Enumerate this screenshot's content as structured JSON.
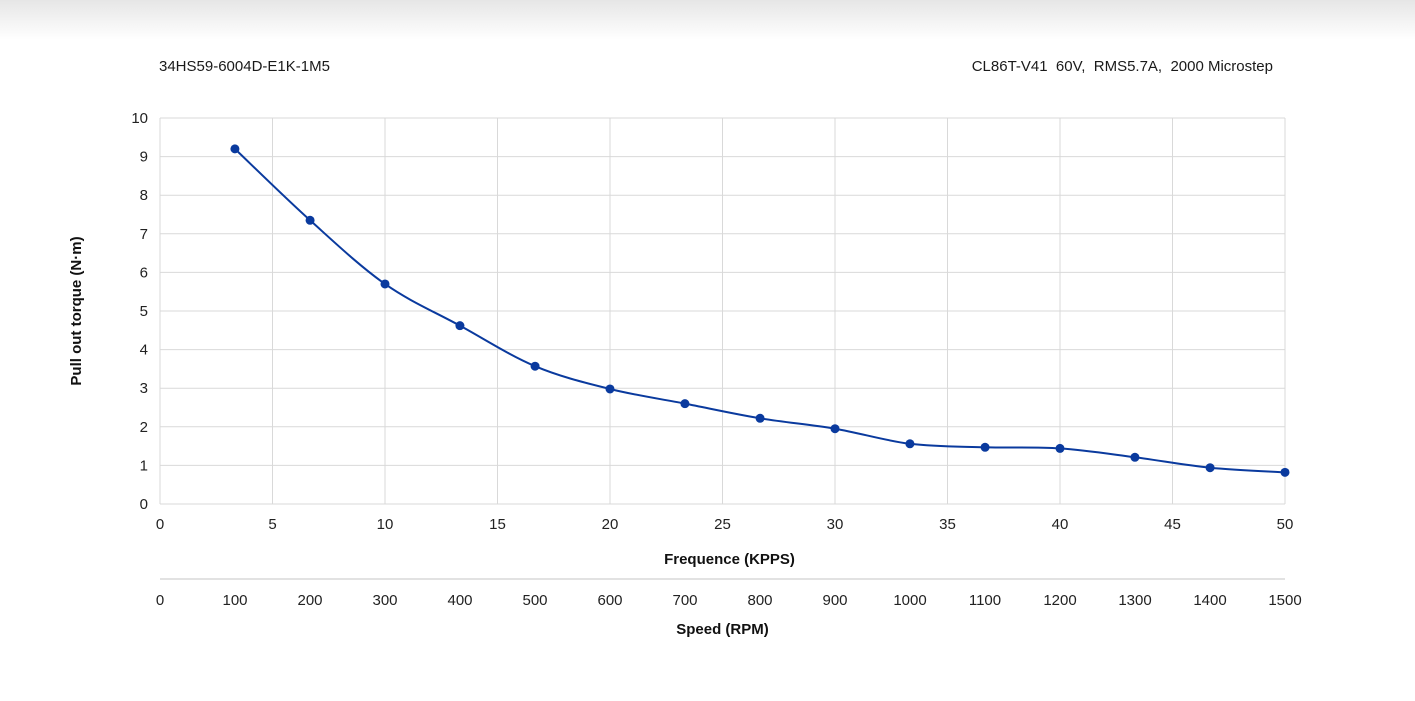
{
  "header": {
    "left": "34HS59-6004D-E1K-1M5",
    "right": "CL86T-V41  60V,  RMS5.7A,  2000 Microstep"
  },
  "chart_data": {
    "type": "line",
    "xlabel": "Frequence (KPPS)",
    "ylabel": "Pull out torque (N·m)",
    "x2label": "Speed (RPM)",
    "xlim": [
      0,
      50
    ],
    "ylim": [
      0,
      10
    ],
    "x_ticks": [
      "0",
      "5",
      "10",
      "15",
      "20",
      "25",
      "30",
      "35",
      "40",
      "45",
      "50"
    ],
    "y_ticks": [
      "0",
      "1",
      "2",
      "3",
      "4",
      "5",
      "6",
      "7",
      "8",
      "9",
      "10"
    ],
    "x2_ticks": [
      "0",
      "100",
      "200",
      "300",
      "400",
      "500",
      "600",
      "700",
      "800",
      "900",
      "1000",
      "1100",
      "1200",
      "1300",
      "1400",
      "1500"
    ],
    "grid": true,
    "line_color": "#0a3a9e",
    "marker_color": "#0a3a9e",
    "series": [
      {
        "x": [
          3.33,
          6.67,
          10,
          13.33,
          16.67,
          20,
          23.33,
          26.67,
          30,
          33.33,
          36.67,
          40,
          43.33,
          46.67,
          50
        ],
        "values": [
          9.2,
          7.35,
          5.7,
          4.62,
          3.57,
          2.98,
          2.6,
          2.22,
          1.95,
          1.56,
          1.47,
          1.44,
          1.21,
          0.94,
          0.82
        ]
      }
    ]
  }
}
